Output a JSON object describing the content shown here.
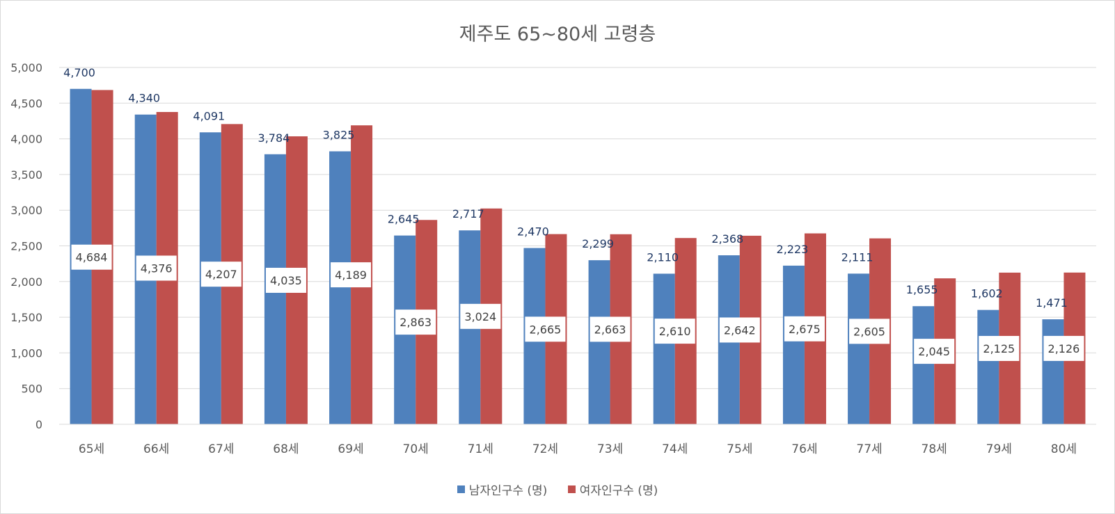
{
  "chart_data": {
    "type": "bar",
    "title": "제주도 65~80세 고령층",
    "categories": [
      "65세",
      "66세",
      "67세",
      "68세",
      "69세",
      "70세",
      "71세",
      "72세",
      "73세",
      "74세",
      "75세",
      "76세",
      "77세",
      "78세",
      "79세",
      "80세"
    ],
    "series": [
      {
        "name": "남자인구수 (명)",
        "color": "#4f81bd",
        "values": [
          4700,
          4340,
          4091,
          3784,
          3825,
          2645,
          2717,
          2470,
          2299,
          2110,
          2368,
          2223,
          2111,
          1655,
          1602,
          1471
        ],
        "labels": [
          "4,700",
          "4,340",
          "4,091",
          "3,784",
          "3,825",
          "2,645",
          "2,717",
          "2,470",
          "2,299",
          "2,110",
          "2,368",
          "2,223",
          "2,111",
          "1,655",
          "1,602",
          "1,471"
        ]
      },
      {
        "name": "여자인구수 (명)",
        "color": "#c0504d",
        "values": [
          4684,
          4376,
          4207,
          4035,
          4189,
          2863,
          3024,
          2665,
          2663,
          2610,
          2642,
          2675,
          2605,
          2045,
          2125,
          2126
        ],
        "labels": [
          "4,684",
          "4,376",
          "4,207",
          "4,035",
          "4,189",
          "2,863",
          "3,024",
          "2,665",
          "2,663",
          "2,610",
          "2,642",
          "2,675",
          "2,605",
          "2,045",
          "2,125",
          "2,126"
        ]
      }
    ],
    "yticks": [
      "0",
      "500",
      "1,000",
      "1,500",
      "2,000",
      "2,500",
      "3,000",
      "3,500",
      "4,000",
      "4,500",
      "5,000"
    ],
    "ylim": [
      0,
      5000
    ],
    "grid": true,
    "legend_position": "bottom"
  }
}
